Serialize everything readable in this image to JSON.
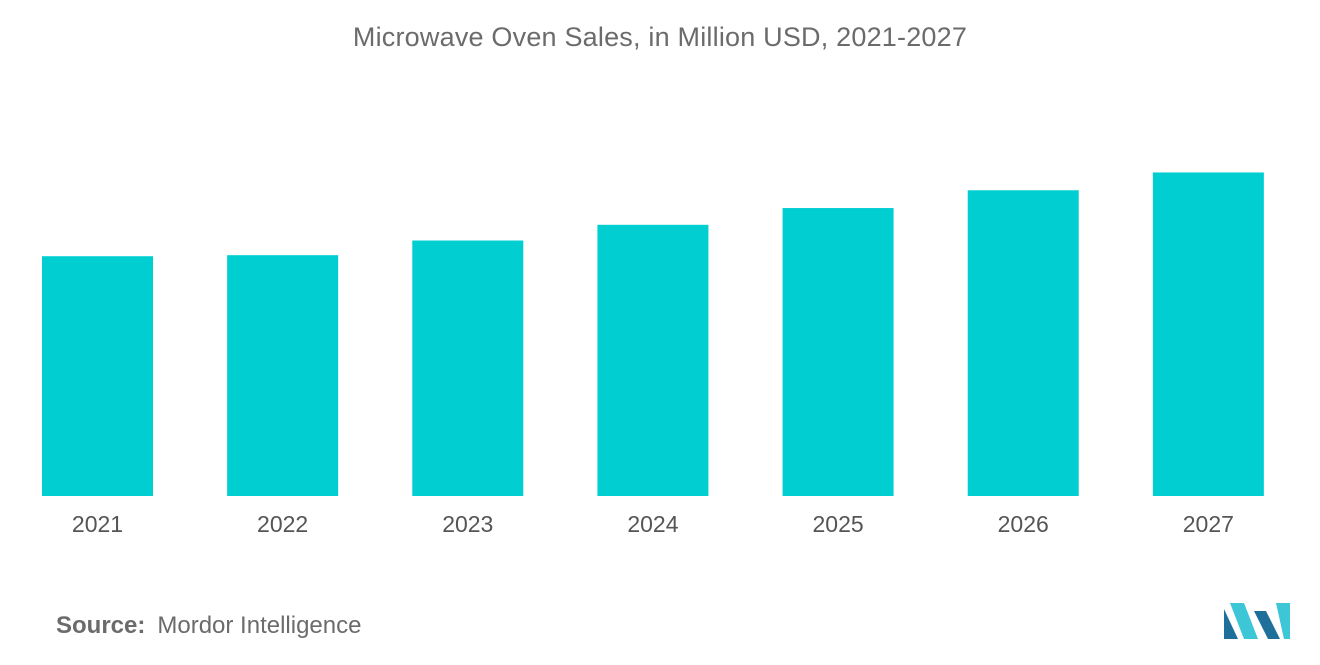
{
  "chart_data": {
    "type": "bar",
    "title": "Microwave Oven Sales, in Million USD, 2021-2027",
    "categories": [
      "2021",
      "2022",
      "2023",
      "2024",
      "2025",
      "2026",
      "2027"
    ],
    "values": [
      229,
      230,
      244,
      259,
      275,
      292,
      309
    ],
    "ylim": [
      0,
      340
    ],
    "xlabel": "",
    "ylabel": "",
    "grid": false,
    "legend": "none",
    "bar_color": "#00CED1"
  },
  "footer": {
    "source_label": "Source:",
    "source_value": "Mordor Intelligence"
  },
  "logo": {
    "icon": "mordor-intelligence-logo",
    "color_dark": "#1E6F99",
    "color_light": "#3CC6D6"
  }
}
